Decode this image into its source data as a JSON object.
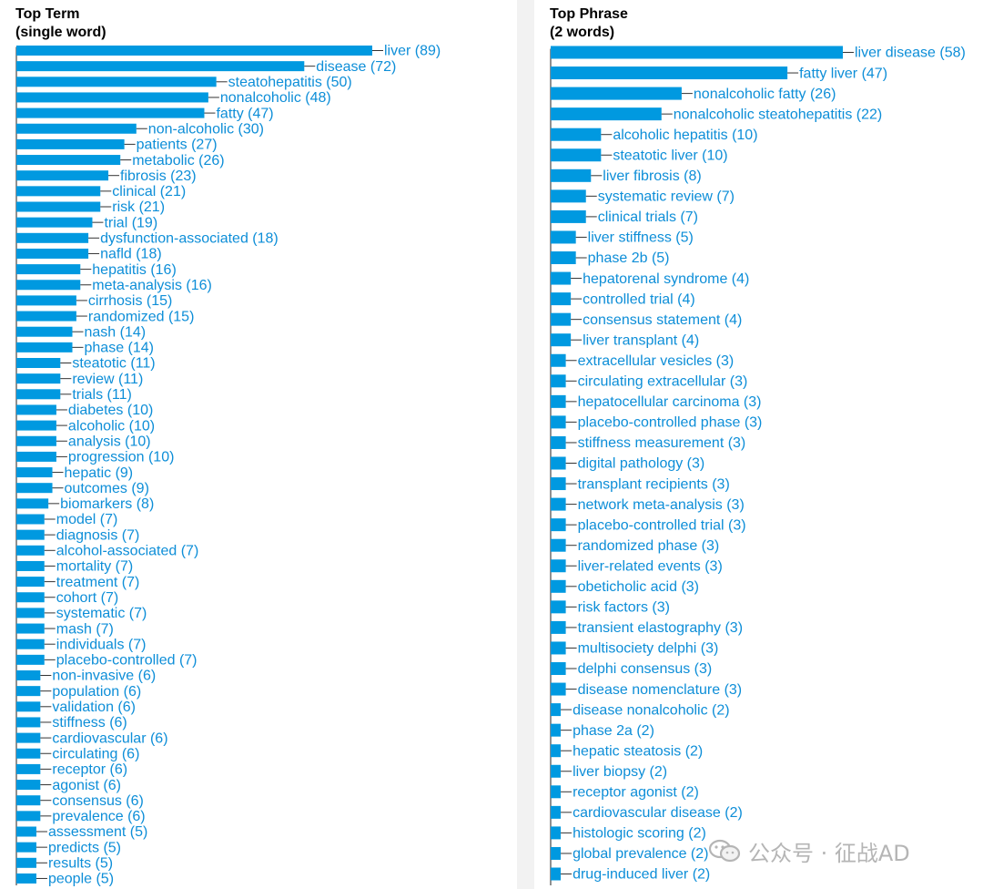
{
  "left_panel": {
    "title_line1": "Top Term",
    "title_line2": "(single word)"
  },
  "right_panel": {
    "title_line1": "Top Phrase",
    "title_line2": "(2 words)"
  },
  "watermark": {
    "text": "公众号 · 征战AD",
    "icon": "wechat-logo-icon"
  },
  "colors": {
    "bar": "#0099e0",
    "label": "#0d8ed8",
    "leader": "#333333"
  },
  "chart_data": [
    {
      "type": "bar",
      "orientation": "horizontal",
      "title": "Top Term (single word)",
      "categories": [
        "liver",
        "disease",
        "steatohepatitis",
        "nonalcoholic",
        "fatty",
        "non-alcoholic",
        "patients",
        "metabolic",
        "fibrosis",
        "clinical",
        "risk",
        "trial",
        "dysfunction-associated",
        "nafld",
        "hepatitis",
        "meta-analysis",
        "cirrhosis",
        "randomized",
        "nash",
        "phase",
        "steatotic",
        "review",
        "trials",
        "diabetes",
        "alcoholic",
        "analysis",
        "progression",
        "hepatic",
        "outcomes",
        "biomarkers",
        "model",
        "diagnosis",
        "alcohol-associated",
        "mortality",
        "treatment",
        "cohort",
        "systematic",
        "mash",
        "individuals",
        "placebo-controlled",
        "non-invasive",
        "population",
        "validation",
        "stiffness",
        "cardiovascular",
        "circulating",
        "receptor",
        "agonist",
        "consensus",
        "prevalence",
        "assessment",
        "predicts",
        "results",
        "people"
      ],
      "values": [
        89,
        72,
        50,
        48,
        47,
        30,
        27,
        26,
        23,
        21,
        21,
        19,
        18,
        18,
        16,
        16,
        15,
        15,
        14,
        14,
        11,
        11,
        11,
        10,
        10,
        10,
        10,
        9,
        9,
        8,
        7,
        7,
        7,
        7,
        7,
        7,
        7,
        7,
        7,
        7,
        6,
        6,
        6,
        6,
        6,
        6,
        6,
        6,
        6,
        6,
        5,
        5,
        5,
        5
      ]
    },
    {
      "type": "bar",
      "orientation": "horizontal",
      "title": "Top Phrase (2 words)",
      "categories": [
        "liver disease",
        "fatty liver",
        "nonalcoholic fatty",
        "nonalcoholic steatohepatitis",
        "alcoholic hepatitis",
        "steatotic liver",
        "liver fibrosis",
        "systematic review",
        "clinical trials",
        "liver stiffness",
        "phase 2b",
        "hepatorenal syndrome",
        "controlled trial",
        "consensus statement",
        "liver transplant",
        "extracellular vesicles",
        "circulating extracellular",
        "hepatocellular carcinoma",
        "placebo-controlled phase",
        "stiffness measurement",
        "digital pathology",
        "transplant recipients",
        "network meta-analysis",
        "placebo-controlled trial",
        "randomized phase",
        "liver-related events",
        "obeticholic acid",
        "risk factors",
        "transient elastography",
        "multisociety delphi",
        "delphi consensus",
        "disease nomenclature",
        "disease nonalcoholic",
        "phase 2a",
        "hepatic steatosis",
        "liver biopsy",
        "receptor agonist",
        "cardiovascular disease",
        "histologic scoring",
        "global prevalence",
        "drug-induced liver"
      ],
      "values": [
        58,
        47,
        26,
        22,
        10,
        10,
        8,
        7,
        7,
        5,
        5,
        4,
        4,
        4,
        4,
        3,
        3,
        3,
        3,
        3,
        3,
        3,
        3,
        3,
        3,
        3,
        3,
        3,
        3,
        3,
        3,
        3,
        2,
        2,
        2,
        2,
        2,
        2,
        2,
        2,
        2
      ]
    }
  ]
}
